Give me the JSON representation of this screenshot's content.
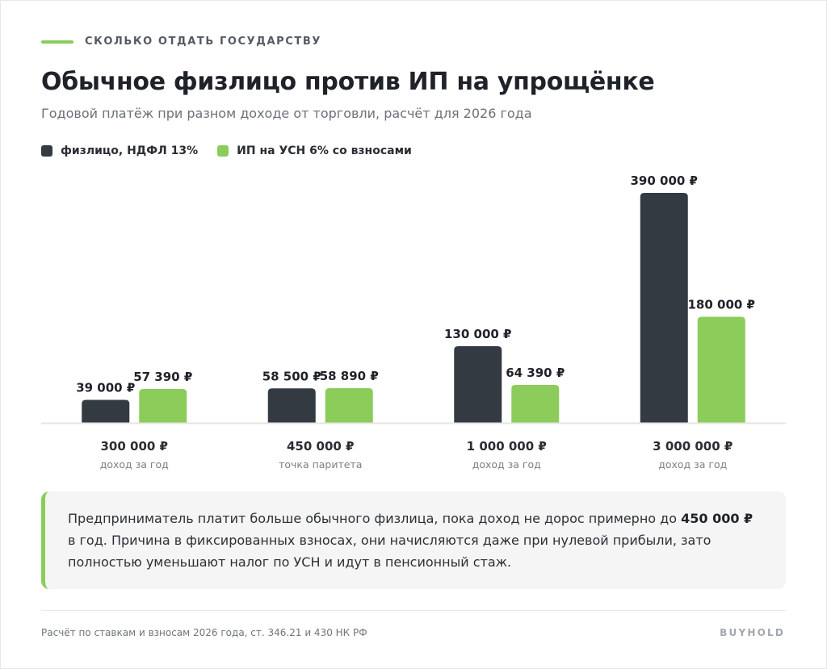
{
  "header": {
    "eyebrow": "СКОЛЬКО ОТДАТЬ ГОСУДАРСТВУ",
    "title": "Обычное физлицо против ИП на упрощёнке",
    "subtitle": "Годовой платёж при разном доходе от торговли, расчёт для 2026 года"
  },
  "legend": [
    {
      "label": "физлицо, НДФЛ 13%",
      "color": "#343a42"
    },
    {
      "label": "ИП на УСН 6% со взносами",
      "color": "#8ccc5b"
    }
  ],
  "chart_data": {
    "type": "bar",
    "categories": [
      "300 000 ₽",
      "450 000 ₽",
      "1 000 000 ₽",
      "3 000 000 ₽"
    ],
    "category_sublabels": [
      "доход за год",
      "точка паритета",
      "доход за год",
      "доход за год"
    ],
    "series": [
      {
        "name": "физлицо, НДФЛ 13%",
        "color": "#343a42",
        "values": [
          39000,
          58500,
          130000,
          390000
        ],
        "labels": [
          "39 000 ₽",
          "58 500 ₽",
          "130 000 ₽",
          "390 000 ₽"
        ]
      },
      {
        "name": "ИП на УСН 6% со взносами",
        "color": "#8ccc5b",
        "values": [
          57390,
          58890,
          64390,
          180000
        ],
        "labels": [
          "57 390 ₽",
          "58 890 ₽",
          "64 390 ₽",
          "180 000 ₽"
        ]
      }
    ],
    "ylim": [
      0,
      390000
    ],
    "grid": false,
    "legend_position": "top-left"
  },
  "callout": {
    "text_before": "Предприниматель платит больше обычного физлица, пока доход не дорос примерно до ",
    "highlight": "450 000 ₽",
    "text_after": " в год. Причина в фиксированных взносах, они начисляются даже при нулевой прибыли, зато полностью уменьшают налог по УСН и идут в пенсионный стаж."
  },
  "footer": {
    "note": "Расчёт по ставкам и взносам 2026 года, ст. 346.21 и 430 НК РФ",
    "brand": "BUYHOLD"
  }
}
